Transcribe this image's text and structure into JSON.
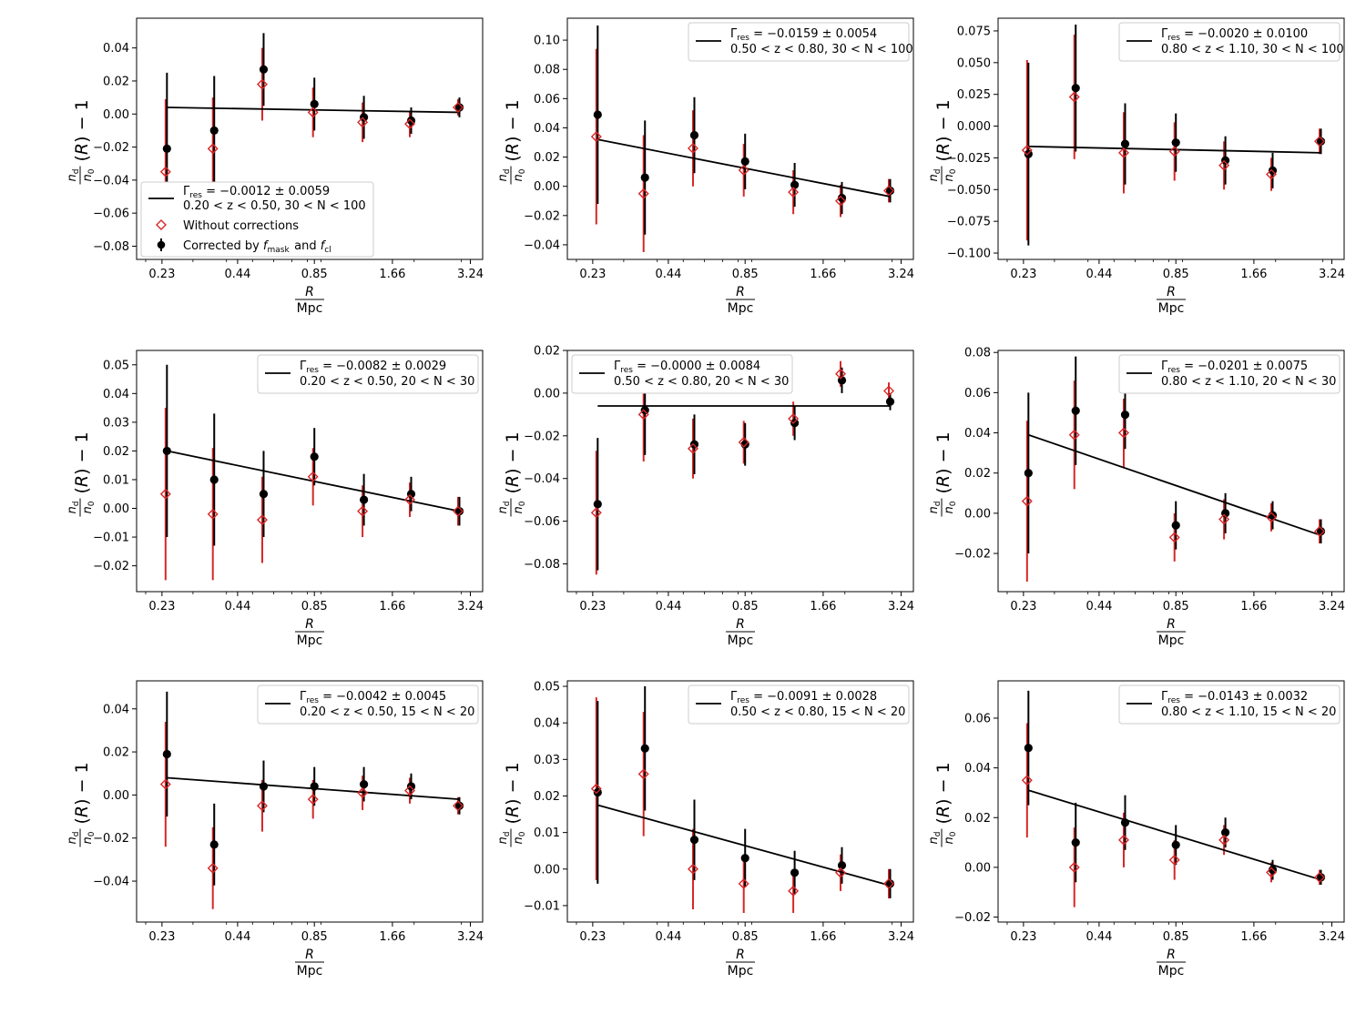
{
  "figure": {
    "ylabel_text": "n_d/n_0 (R) − 1",
    "xlabel_text": "R / Mpc",
    "colors": {
      "corrected": "#000000",
      "uncorrected": "#d62728",
      "fit": "#000000",
      "legend_border": "#cccccc"
    }
  },
  "legend_common": {
    "without_corrections": "Without corrections",
    "corrected": "Corrected by f_mask and f_cl"
  },
  "chart_data": [
    {
      "type": "scatter",
      "panel": "row1-col1",
      "legend_placement": "lower-left",
      "fit_label": "Γres = −0.0012 ± 0.0059",
      "sample_label": "0.20 < z < 0.50, 30 < N < 100",
      "gamma": -0.0012,
      "gamma_err": 0.0059,
      "x": [
        0.24,
        0.36,
        0.55,
        0.85,
        1.3,
        1.95,
        2.95
      ],
      "xticks": [
        0.23,
        0.44,
        0.85,
        1.66,
        3.24
      ],
      "xtick_labels": [
        "0.23",
        "0.44",
        "0.85",
        "1.66",
        "3.24"
      ],
      "ylim": [
        -0.088,
        0.058
      ],
      "yticks": [
        -0.08,
        -0.06,
        -0.04,
        -0.02,
        0.0,
        0.02,
        0.04
      ],
      "ytick_labels": [
        "−0.08",
        "−0.06",
        "−0.04",
        "−0.02",
        "0.00",
        "0.02",
        "0.04"
      ],
      "series": [
        {
          "name": "Corrected by f_mask and f_cl",
          "y": [
            -0.021,
            -0.01,
            0.027,
            0.006,
            -0.002,
            -0.004,
            0.004
          ],
          "err": [
            0.046,
            0.033,
            0.022,
            0.016,
            0.013,
            0.008,
            0.006
          ]
        },
        {
          "name": "Without corrections",
          "y": [
            -0.035,
            -0.021,
            0.018,
            0.001,
            -0.005,
            -0.006,
            0.004
          ],
          "err": [
            0.044,
            0.031,
            0.022,
            0.015,
            0.012,
            0.008,
            0.005
          ]
        }
      ],
      "fit_line": {
        "x": [
          0.24,
          2.95
        ],
        "y": [
          0.004,
          0.001
        ]
      }
    },
    {
      "type": "scatter",
      "panel": "row1-col2",
      "legend_placement": "top-right",
      "fit_label": "Γres = −0.0159 ± 0.0054",
      "sample_label": "0.50 < z < 0.80, 30 < N < 100",
      "gamma": -0.0159,
      "gamma_err": 0.0054,
      "x": [
        0.24,
        0.36,
        0.55,
        0.85,
        1.3,
        1.95,
        2.95
      ],
      "xticks": [
        0.23,
        0.44,
        0.85,
        1.66,
        3.24
      ],
      "xtick_labels": [
        "0.23",
        "0.44",
        "0.85",
        "1.66",
        "3.24"
      ],
      "ylim": [
        -0.05,
        0.115
      ],
      "yticks": [
        -0.04,
        -0.02,
        0.0,
        0.02,
        0.04,
        0.06,
        0.08,
        0.1
      ],
      "ytick_labels": [
        "−0.04",
        "−0.02",
        "0.00",
        "0.02",
        "0.04",
        "0.06",
        "0.08",
        "0.10"
      ],
      "series": [
        {
          "name": "Corrected by f_mask and f_cl",
          "y": [
            0.049,
            0.006,
            0.035,
            0.017,
            0.001,
            -0.008,
            -0.003
          ],
          "err": [
            0.061,
            0.039,
            0.026,
            0.019,
            0.015,
            0.011,
            0.008
          ]
        },
        {
          "name": "Without corrections",
          "y": [
            0.034,
            -0.005,
            0.026,
            0.011,
            -0.004,
            -0.01,
            -0.003
          ],
          "err": [
            0.06,
            0.04,
            0.026,
            0.018,
            0.015,
            0.011,
            0.008
          ]
        }
      ],
      "fit_line": {
        "x": [
          0.24,
          2.95
        ],
        "y": [
          0.032,
          -0.007
        ]
      }
    },
    {
      "type": "scatter",
      "panel": "row1-col3",
      "legend_placement": "top-right",
      "fit_label": "Γres = −0.0020 ± 0.0100",
      "sample_label": "0.80 < z < 1.10, 30 < N < 100",
      "gamma": -0.002,
      "gamma_err": 0.01,
      "x": [
        0.24,
        0.36,
        0.55,
        0.85,
        1.3,
        1.95,
        2.95
      ],
      "xticks": [
        0.23,
        0.44,
        0.85,
        1.66,
        3.24
      ],
      "xtick_labels": [
        "0.23",
        "0.44",
        "0.85",
        "1.66",
        "3.24"
      ],
      "ylim": [
        -0.105,
        0.085
      ],
      "yticks": [
        -0.1,
        -0.075,
        -0.05,
        -0.025,
        0.0,
        0.025,
        0.05,
        0.075
      ],
      "ytick_labels": [
        "−0.100",
        "−0.075",
        "−0.050",
        "−0.025",
        "0.000",
        "0.025",
        "0.050",
        "0.075"
      ],
      "series": [
        {
          "name": "Corrected by f_mask and f_cl",
          "y": [
            -0.022,
            0.03,
            -0.014,
            -0.013,
            -0.027,
            -0.035,
            -0.012
          ],
          "err": [
            0.072,
            0.05,
            0.032,
            0.023,
            0.019,
            0.014,
            0.01
          ]
        },
        {
          "name": "Without corrections",
          "y": [
            -0.019,
            0.023,
            -0.021,
            -0.02,
            -0.031,
            -0.038,
            -0.012
          ],
          "err": [
            0.071,
            0.049,
            0.032,
            0.023,
            0.019,
            0.013,
            0.01
          ]
        }
      ],
      "fit_line": {
        "x": [
          0.24,
          2.95
        ],
        "y": [
          -0.016,
          -0.021
        ]
      }
    },
    {
      "type": "scatter",
      "panel": "row2-col1",
      "legend_placement": "top-right",
      "fit_label": "Γres = −0.0082 ± 0.0029",
      "sample_label": "0.20 < z < 0.50, 20 < N < 30",
      "gamma": -0.0082,
      "gamma_err": 0.0029,
      "x": [
        0.24,
        0.36,
        0.55,
        0.85,
        1.3,
        1.95,
        2.95
      ],
      "xticks": [
        0.23,
        0.44,
        0.85,
        1.66,
        3.24
      ],
      "xtick_labels": [
        "0.23",
        "0.44",
        "0.85",
        "1.66",
        "3.24"
      ],
      "ylim": [
        -0.029,
        0.055
      ],
      "yticks": [
        -0.02,
        -0.01,
        0.0,
        0.01,
        0.02,
        0.03,
        0.04,
        0.05
      ],
      "ytick_labels": [
        "−0.02",
        "−0.01",
        "0.00",
        "0.01",
        "0.02",
        "0.03",
        "0.04",
        "0.05"
      ],
      "series": [
        {
          "name": "Corrected by f_mask and f_cl",
          "y": [
            0.02,
            0.01,
            0.005,
            0.018,
            0.003,
            0.005,
            -0.001
          ],
          "err": [
            0.03,
            0.023,
            0.015,
            0.01,
            0.009,
            0.006,
            0.005
          ]
        },
        {
          "name": "Without corrections",
          "y": [
            0.005,
            -0.002,
            -0.004,
            0.011,
            -0.001,
            0.003,
            -0.001
          ],
          "err": [
            0.03,
            0.023,
            0.015,
            0.01,
            0.009,
            0.006,
            0.005
          ]
        }
      ],
      "fit_line": {
        "x": [
          0.24,
          2.95
        ],
        "y": [
          0.02,
          -0.001
        ]
      }
    },
    {
      "type": "scatter",
      "panel": "row2-col2",
      "legend_placement": "top-left",
      "fit_label": "Γres = −0.0000 ± 0.0084",
      "sample_label": "0.50 < z < 0.80, 20 < N < 30",
      "gamma": -0.0,
      "gamma_err": 0.0084,
      "x": [
        0.24,
        0.36,
        0.55,
        0.85,
        1.3,
        1.95,
        2.95
      ],
      "xticks": [
        0.23,
        0.44,
        0.85,
        1.66,
        3.24
      ],
      "xtick_labels": [
        "0.23",
        "0.44",
        "0.85",
        "1.66",
        "3.24"
      ],
      "ylim": [
        -0.093,
        0.02
      ],
      "yticks": [
        -0.08,
        -0.06,
        -0.04,
        -0.02,
        0.0,
        0.02
      ],
      "ytick_labels": [
        "−0.08",
        "−0.06",
        "−0.04",
        "−0.02",
        "0.00",
        "0.02"
      ],
      "series": [
        {
          "name": "Corrected by f_mask and f_cl",
          "y": [
            -0.052,
            -0.008,
            -0.024,
            -0.024,
            -0.014,
            0.006,
            -0.004
          ],
          "err": [
            0.031,
            0.021,
            0.014,
            0.01,
            0.008,
            0.006,
            0.004
          ]
        },
        {
          "name": "Without corrections",
          "y": [
            -0.056,
            -0.01,
            -0.026,
            -0.023,
            -0.012,
            0.009,
            0.001
          ],
          "err": [
            0.029,
            0.022,
            0.014,
            0.01,
            0.008,
            0.006,
            0.004
          ]
        }
      ],
      "fit_line": {
        "x": [
          0.24,
          2.95
        ],
        "y": [
          -0.006,
          -0.006
        ]
      }
    },
    {
      "type": "scatter",
      "panel": "row2-col3",
      "legend_placement": "top-right",
      "fit_label": "Γres = −0.0201 ± 0.0075",
      "sample_label": "0.80 < z < 1.10, 20 < N < 30",
      "gamma": -0.0201,
      "gamma_err": 0.0075,
      "x": [
        0.24,
        0.36,
        0.55,
        0.85,
        1.3,
        1.95,
        2.95
      ],
      "xticks": [
        0.23,
        0.44,
        0.85,
        1.66,
        3.24
      ],
      "xtick_labels": [
        "0.23",
        "0.44",
        "0.85",
        "1.66",
        "3.24"
      ],
      "ylim": [
        -0.039,
        0.081
      ],
      "yticks": [
        -0.02,
        0.0,
        0.02,
        0.04,
        0.06,
        0.08
      ],
      "ytick_labels": [
        "−0.02",
        "0.00",
        "0.02",
        "0.04",
        "0.06",
        "0.08"
      ],
      "series": [
        {
          "name": "Corrected by f_mask and f_cl",
          "y": [
            0.02,
            0.051,
            0.049,
            -0.006,
            0.0,
            -0.001,
            -0.009
          ],
          "err": [
            0.04,
            0.027,
            0.017,
            0.012,
            0.01,
            0.007,
            0.006
          ]
        },
        {
          "name": "Without corrections",
          "y": [
            0.006,
            0.039,
            0.04,
            -0.012,
            -0.003,
            -0.002,
            -0.009
          ],
          "err": [
            0.04,
            0.027,
            0.017,
            0.012,
            0.01,
            0.007,
            0.006
          ]
        }
      ],
      "fit_line": {
        "x": [
          0.24,
          2.95
        ],
        "y": [
          0.039,
          -0.011
        ]
      }
    },
    {
      "type": "scatter",
      "panel": "row3-col1",
      "legend_placement": "top-right",
      "fit_label": "Γres = −0.0042 ± 0.0045",
      "sample_label": "0.20 < z < 0.50, 15 < N < 20",
      "gamma": -0.0042,
      "gamma_err": 0.0045,
      "x": [
        0.24,
        0.36,
        0.55,
        0.85,
        1.3,
        1.95,
        2.95
      ],
      "xticks": [
        0.23,
        0.44,
        0.85,
        1.66,
        3.24
      ],
      "xtick_labels": [
        "0.23",
        "0.44",
        "0.85",
        "1.66",
        "3.24"
      ],
      "ylim": [
        -0.059,
        0.053
      ],
      "yticks": [
        -0.04,
        -0.02,
        0.0,
        0.02,
        0.04
      ],
      "ytick_labels": [
        "−0.04",
        "−0.02",
        "0.00",
        "0.02",
        "0.04"
      ],
      "series": [
        {
          "name": "Corrected by f_mask and f_cl",
          "y": [
            0.019,
            -0.023,
            0.004,
            0.004,
            0.005,
            0.004,
            -0.005
          ],
          "err": [
            0.029,
            0.019,
            0.012,
            0.009,
            0.008,
            0.006,
            0.004
          ]
        },
        {
          "name": "Without corrections",
          "y": [
            0.005,
            -0.034,
            -0.005,
            -0.002,
            0.001,
            0.002,
            -0.005
          ],
          "err": [
            0.029,
            0.019,
            0.012,
            0.009,
            0.008,
            0.006,
            0.004
          ]
        }
      ],
      "fit_line": {
        "x": [
          0.24,
          2.95
        ],
        "y": [
          0.008,
          -0.002
        ]
      }
    },
    {
      "type": "scatter",
      "panel": "row3-col2",
      "legend_placement": "top-right",
      "fit_label": "Γres = −0.0091 ± 0.0028",
      "sample_label": "0.50 < z < 0.80, 15 < N < 20",
      "gamma": -0.0091,
      "gamma_err": 0.0028,
      "x": [
        0.24,
        0.36,
        0.55,
        0.85,
        1.3,
        1.95,
        2.95
      ],
      "xticks": [
        0.23,
        0.44,
        0.85,
        1.66,
        3.24
      ],
      "xtick_labels": [
        "0.23",
        "0.44",
        "0.85",
        "1.66",
        "3.24"
      ],
      "ylim": [
        -0.0145,
        0.0515
      ],
      "yticks": [
        -0.01,
        0.0,
        0.01,
        0.02,
        0.03,
        0.04,
        0.05
      ],
      "ytick_labels": [
        "−0.01",
        "0.00",
        "0.01",
        "0.02",
        "0.03",
        "0.04",
        "0.05"
      ],
      "series": [
        {
          "name": "Corrected by f_mask and f_cl",
          "y": [
            0.021,
            0.033,
            0.008,
            0.003,
            -0.001,
            0.001,
            -0.004
          ],
          "err": [
            0.025,
            0.017,
            0.011,
            0.008,
            0.006,
            0.005,
            0.004
          ]
        },
        {
          "name": "Without corrections",
          "y": [
            0.022,
            0.026,
            0.0,
            -0.004,
            -0.006,
            -0.001,
            -0.004
          ],
          "err": [
            0.025,
            0.017,
            0.011,
            0.008,
            0.006,
            0.005,
            0.004
          ]
        }
      ],
      "fit_line": {
        "x": [
          0.24,
          2.95
        ],
        "y": [
          0.0175,
          -0.0045
        ]
      }
    },
    {
      "type": "scatter",
      "panel": "row3-col3",
      "legend_placement": "top-right",
      "fit_label": "Γres = −0.0143 ± 0.0032",
      "sample_label": "0.80 < z < 1.10, 15 < N < 20",
      "gamma": -0.0143,
      "gamma_err": 0.0032,
      "x": [
        0.24,
        0.36,
        0.55,
        0.85,
        1.3,
        1.95,
        2.95
      ],
      "xticks": [
        0.23,
        0.44,
        0.85,
        1.66,
        3.24
      ],
      "xtick_labels": [
        "0.23",
        "0.44",
        "0.85",
        "1.66",
        "3.24"
      ],
      "ylim": [
        -0.022,
        0.075
      ],
      "yticks": [
        -0.02,
        0.0,
        0.02,
        0.04,
        0.06
      ],
      "ytick_labels": [
        "−0.02",
        "0.00",
        "0.02",
        "0.04",
        "0.06"
      ],
      "series": [
        {
          "name": "Corrected by f_mask and f_cl",
          "y": [
            0.048,
            0.01,
            0.018,
            0.009,
            0.014,
            -0.001,
            -0.004
          ],
          "err": [
            0.023,
            0.016,
            0.011,
            0.008,
            0.006,
            0.004,
            0.003
          ]
        },
        {
          "name": "Without corrections",
          "y": [
            0.035,
            0.0,
            0.011,
            0.003,
            0.011,
            -0.002,
            -0.004
          ],
          "err": [
            0.023,
            0.016,
            0.011,
            0.008,
            0.006,
            0.004,
            0.003
          ]
        }
      ],
      "fit_line": {
        "x": [
          0.24,
          2.95
        ],
        "y": [
          0.031,
          -0.005
        ]
      }
    }
  ]
}
